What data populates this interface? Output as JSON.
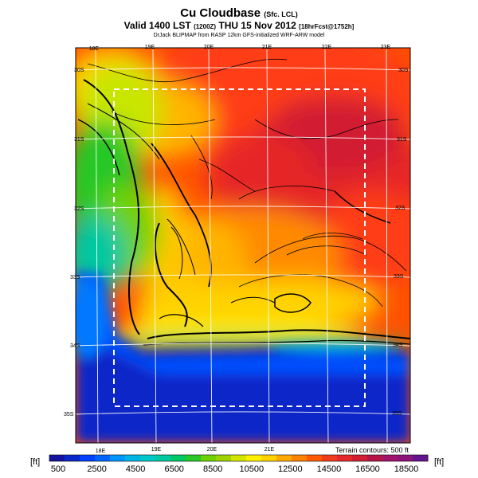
{
  "header": {
    "title": "Cu Cloudbase",
    "title_suffix": "(Sfc. LCL)",
    "valid_prefix": "Valid 1400 LST",
    "valid_code": "(1200Z)",
    "valid_date": "THU 15 Nov 2012",
    "valid_suffix": "[18hrFcst@1752h]",
    "credit": "DrJack BLIPMAP from RASP 12km GFS-initialized WRF-ARW model"
  },
  "map": {
    "top_lon_labels": [
      "18E",
      "19E",
      "20E",
      "21E",
      "22E",
      "23E"
    ],
    "bottom_lon_labels": [
      "18E",
      "19E",
      "20E",
      "21E"
    ],
    "left_lat_labels": [
      "30S",
      "31S",
      "32S",
      "33S",
      "34S",
      "35S"
    ],
    "right_lat_labels": [
      "30S",
      "31S",
      "32S",
      "33S",
      "34S",
      "35S"
    ],
    "terrain_note": "Terrain contours: 500 ft"
  },
  "colorbar": {
    "unit_left": "[ft]",
    "unit_right": "[ft]",
    "labels": [
      "500",
      "2500",
      "4500",
      "6500",
      "8500",
      "10500",
      "12500",
      "14500",
      "16500",
      "18500"
    ],
    "colors": [
      "#1414a0",
      "#0a28c8",
      "#0040ff",
      "#0064ff",
      "#0096ff",
      "#00b4e6",
      "#00c8c8",
      "#00c8a0",
      "#00c864",
      "#28c828",
      "#6ed200",
      "#a0d200",
      "#d2e600",
      "#fff000",
      "#ffd200",
      "#ffaa00",
      "#ff8200",
      "#ff5a00",
      "#f03c1e",
      "#e62828",
      "#d21e32",
      "#b41446",
      "#a0146e",
      "#8c1478",
      "#64148c"
    ]
  }
}
